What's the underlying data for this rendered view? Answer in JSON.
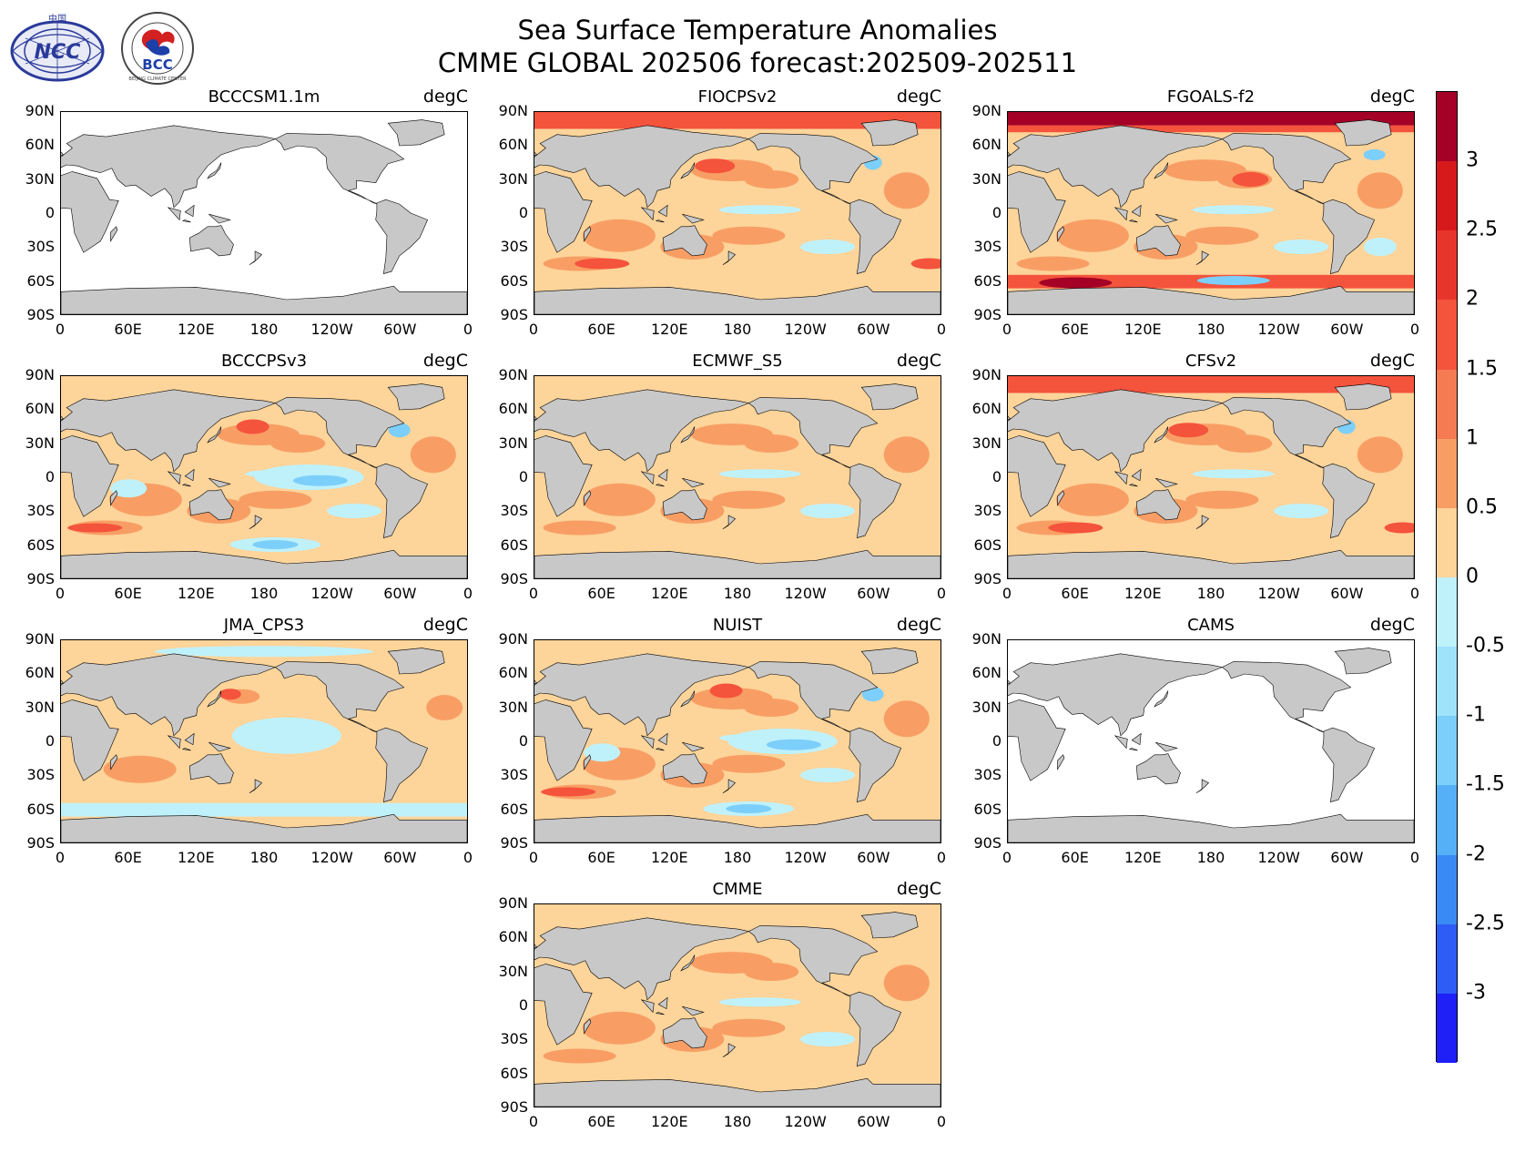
{
  "header": {
    "title_line1": "Sea Surface Temperature Anomalies",
    "title_line2": "CMME GLOBAL 202506 forecast:202509-202511"
  },
  "logos": {
    "ncc": {
      "name": "ncc-logo",
      "text": "NCC",
      "small_text": "中国"
    },
    "bcc": {
      "name": "bcc-logo",
      "text": "BCC",
      "ring_text": "BEIJING CLIMATE CENTER"
    }
  },
  "unit": "degC",
  "panels": [
    {
      "name": "BCCCSM1.1m",
      "style": "white"
    },
    {
      "name": "FIOCPSv2",
      "style": "warm-arctic"
    },
    {
      "name": "FGOALS-f2",
      "style": "hot"
    },
    {
      "name": "BCCCPSv3",
      "style": "mixed"
    },
    {
      "name": "ECMWF_S5",
      "style": "warm"
    },
    {
      "name": "CFSv2",
      "style": "warm-arctic"
    },
    {
      "name": "JMA_CPS3",
      "style": "cool"
    },
    {
      "name": "NUIST",
      "style": "mixed"
    },
    {
      "name": "CAMS",
      "style": "white"
    },
    {
      "name": "CMME",
      "style": "warm"
    }
  ],
  "lat_labels": [
    "90N",
    "60N",
    "30N",
    "0",
    "30S",
    "60S",
    "90S"
  ],
  "lon_labels": [
    "0",
    "60E",
    "120E",
    "180",
    "120W",
    "60W",
    "0"
  ],
  "colorbar": {
    "labels": [
      "3",
      "2.5",
      "2",
      "1.5",
      "1",
      "0.5",
      "0",
      "-0.5",
      "-1",
      "-1.5",
      "-2",
      "-2.5",
      "-3"
    ],
    "colors": [
      "#a50026",
      "#d7191c",
      "#e8352c",
      "#f4533c",
      "#f47b52",
      "#f89e64",
      "#fdd49a",
      "#bff1fb",
      "#9fe3fa",
      "#7ccffa",
      "#56b0f7",
      "#3a8af5",
      "#2d5cf7",
      "#1f1ff8"
    ]
  },
  "colors": {
    "land": "#c8c8c8",
    "ocean_white": "#ffffff",
    "warm_light": "#fdd49a",
    "warm_mid": "#f89e64",
    "warm_strong": "#f4533c",
    "hot": "#a50026",
    "cool_light": "#bff1fb",
    "cool_mid": "#7ccffa",
    "cool_strong": "#3a8af5"
  }
}
